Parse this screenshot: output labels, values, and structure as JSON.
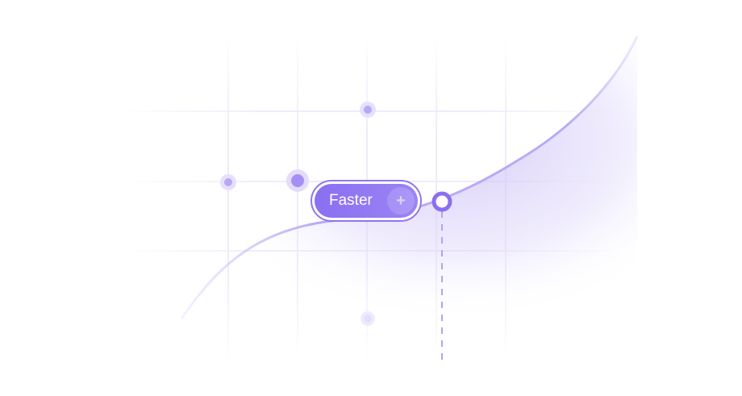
{
  "badge": {
    "label": "Faster",
    "icon": "plus-icon"
  },
  "colors": {
    "accent": "#8a6ff2",
    "grid": "#efedfb",
    "curve": "#b9aaf3"
  }
}
